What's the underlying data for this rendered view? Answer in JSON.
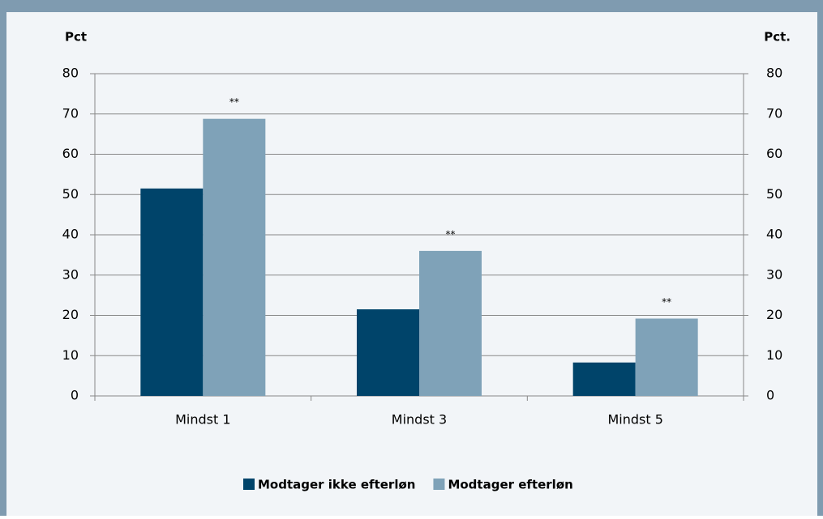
{
  "chart_data": {
    "type": "bar",
    "y_label": "Pct",
    "y2_label": "Pct.",
    "categories": [
      "Mindst 1",
      "Mindst 3",
      "Mindst 5"
    ],
    "series": [
      {
        "name": "Modtager ikke efterløn",
        "color": "#00446a",
        "values": [
          51.5,
          21.5,
          8.3
        ]
      },
      {
        "name": "Modtager efterløn",
        "color": "#7fa2b8",
        "values": [
          68.8,
          36,
          19.2
        ]
      }
    ],
    "annotations": [
      "**",
      "**",
      "**"
    ],
    "ylim": [
      0,
      80
    ],
    "yticks": [
      0,
      10,
      20,
      30,
      40,
      50,
      60,
      70,
      80
    ],
    "y2lim": [
      0,
      80
    ],
    "y2ticks": [
      0,
      10,
      20,
      30,
      40,
      50,
      60,
      70,
      80
    ],
    "grid": true,
    "legend": "bottom"
  }
}
